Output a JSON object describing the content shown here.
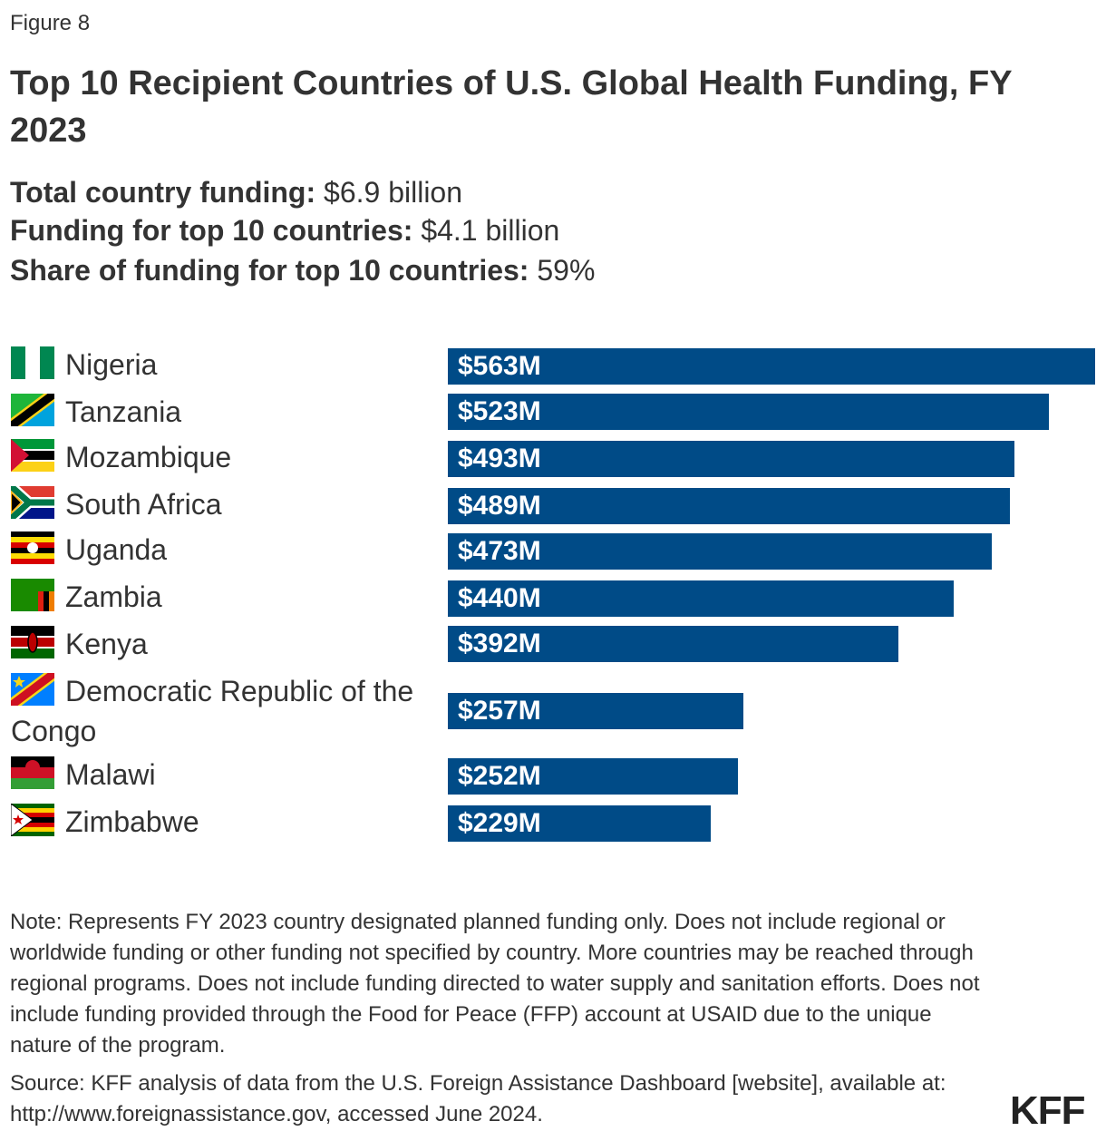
{
  "figure_label": "Figure 8",
  "title": "Top 10 Recipient Countries of U.S. Global Health Funding, FY 2023",
  "stats": [
    {
      "label": "Total country funding:",
      "value": "$6.9 billion"
    },
    {
      "label": "Funding for top 10 countries:",
      "value": "$4.1 billion"
    },
    {
      "label": "Share of funding for top 10 countries:",
      "value": "59%"
    }
  ],
  "chart_data": {
    "type": "bar",
    "orientation": "horizontal",
    "categories": [
      "Nigeria",
      "Tanzania",
      "Mozambique",
      "South Africa",
      "Uganda",
      "Zambia",
      "Kenya",
      "Democratic Republic of the Congo",
      "Malawi",
      "Zimbabwe"
    ],
    "values": [
      563,
      523,
      493,
      489,
      473,
      440,
      392,
      257,
      252,
      229
    ],
    "data_labels": [
      "$563M",
      "$523M",
      "$493M",
      "$489M",
      "$473M",
      "$440M",
      "$392M",
      "$257M",
      "$252M",
      "$229M"
    ],
    "unit": "USD millions",
    "flags": [
      "nigeria-flag-icon",
      "tanzania-flag-icon",
      "mozambique-flag-icon",
      "south-africa-flag-icon",
      "uganda-flag-icon",
      "zambia-flag-icon",
      "kenya-flag-icon",
      "drc-flag-icon",
      "malawi-flag-icon",
      "zimbabwe-flag-icon"
    ],
    "bar_color": "#004b87",
    "grid": false
  },
  "note": "Note: Represents FY 2023 country designated planned funding only. Does not include regional or worldwide funding or other funding not specified by country. More countries may be reached through regional programs. Does not include funding directed to water supply and sanitation efforts. Does not include funding provided through the Food for Peace (FFP) account at USAID due to the unique nature of the program.",
  "source": "Source: KFF analysis of data from the U.S. Foreign Assistance Dashboard [website], available at: http://www.foreignassistance.gov, accessed June 2024.",
  "logo": "KFF"
}
